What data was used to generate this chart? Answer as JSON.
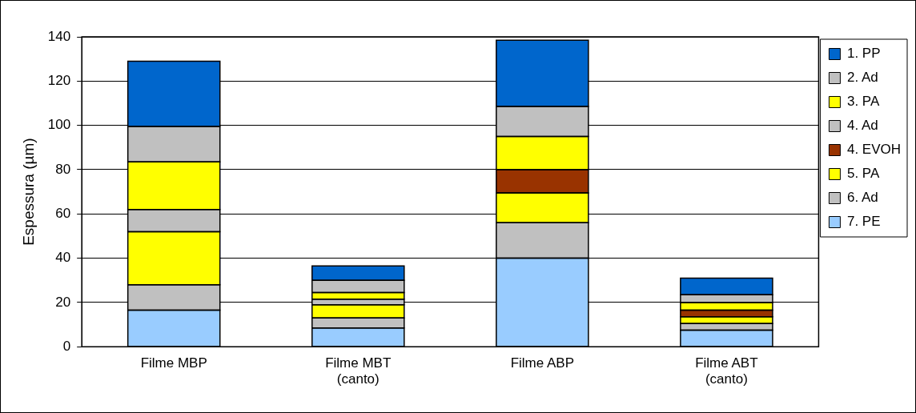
{
  "chart_data": {
    "type": "bar",
    "stacked": true,
    "ylabel": "Espessura (µm)",
    "categories": [
      "Filme MBP",
      "Filme MBT (canto)",
      "Filme ABP",
      "Filme ABT (canto)"
    ],
    "series": [
      {
        "name": "7. PE",
        "color": "#99ccff",
        "values": [
          16.5,
          8.5,
          40,
          7.5
        ]
      },
      {
        "name": "6. Ad",
        "color": "#c0c0c0",
        "values": [
          11.5,
          4.5,
          16,
          3
        ]
      },
      {
        "name": "5. PA",
        "color": "#ffff00",
        "values": [
          24,
          6,
          13.5,
          3
        ]
      },
      {
        "name": "4. EVOH",
        "color": "#993300",
        "values": [
          null,
          null,
          10.5,
          3
        ]
      },
      {
        "name": "4. Ad",
        "color": "#c0c0c0",
        "values": [
          10,
          2.5,
          null,
          null
        ]
      },
      {
        "name": "3. PA",
        "color": "#ffff00",
        "values": [
          21.5,
          3,
          15,
          3.5
        ]
      },
      {
        "name": "2. Ad",
        "color": "#c0c0c0",
        "values": [
          16,
          5.5,
          13.5,
          3.5
        ]
      },
      {
        "name": "1. PP",
        "color": "#0066cc",
        "values": [
          29.5,
          6.5,
          30,
          7.5
        ]
      }
    ],
    "ylim": [
      0,
      140
    ],
    "yticks": [
      0,
      20,
      40,
      60,
      80,
      100,
      120,
      140
    ],
    "grid": "y",
    "legend": "right"
  }
}
